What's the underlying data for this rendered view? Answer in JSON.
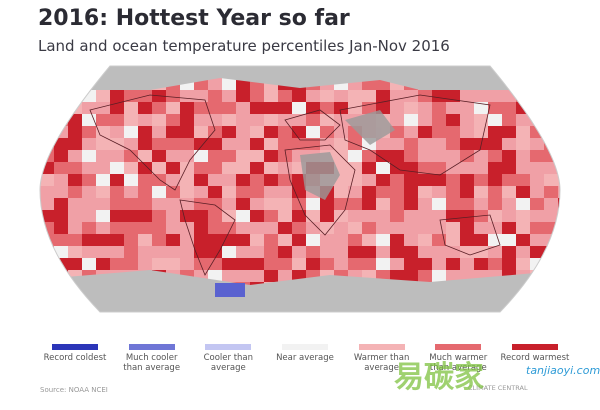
{
  "header": {
    "title": "2016: Hottest Year so far",
    "subtitle": "Land and ocean temperature percentiles Jan-Nov 2016"
  },
  "legend": [
    {
      "label": "Record coldest",
      "color": "#2b35b8"
    },
    {
      "label": "Much cooler than average",
      "color": "#6f76d6"
    },
    {
      "label": "Cooler than average",
      "color": "#c3c6f2"
    },
    {
      "label": "Near average",
      "color": "#f2f2f2"
    },
    {
      "label": "Warmer than average",
      "color": "#f4b3b5"
    },
    {
      "label": "Much warmer than average",
      "color": "#e5696f"
    },
    {
      "label": "Record warmest",
      "color": "#c8202b"
    }
  ],
  "source": "Source: NOAA NCEI",
  "watermark": {
    "brand": "CLIMATE CENTRAL",
    "site": "tanjiaoyi.com",
    "logo": "易碳家"
  }
}
